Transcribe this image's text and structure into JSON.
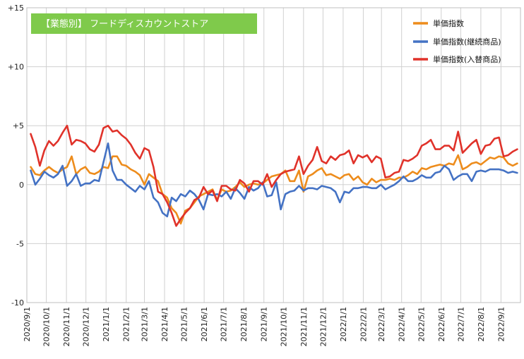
{
  "chart_data": {
    "type": "line",
    "title": "【業態別】 フードディスカウントストア",
    "xlabel": "",
    "ylabel": "",
    "ylim": [
      -10,
      15
    ],
    "yticks": [
      15,
      10,
      5,
      0,
      -5,
      -10
    ],
    "ytick_labels": [
      "+15",
      "+10",
      "+5",
      "0",
      "-5",
      "-10"
    ],
    "grid": true,
    "legend_position": "top-right",
    "x_start": "2020-09-01",
    "x_end": "2022-09-30",
    "xticks": [
      "2020-09-01",
      "2020-10-01",
      "2020-11-01",
      "2020-12-01",
      "2021-01-01",
      "2021-02-01",
      "2021-03-01",
      "2021-04-01",
      "2021-05-01",
      "2021-06-01",
      "2021-07-01",
      "2021-08-01",
      "2021-09-01",
      "2021-10-01",
      "2021-11-01",
      "2021-12-01",
      "2022-01-01",
      "2022-02-01",
      "2022-03-01",
      "2022-04-01",
      "2022-05-01",
      "2022-06-01",
      "2022-07-01",
      "2022-08-01",
      "2022-09-01"
    ],
    "xtick_labels": [
      "2020/9/1",
      "2020/10/1",
      "2020/11/1",
      "2020/12/1",
      "2021/1/1",
      "2021/2/1",
      "2021/3/1",
      "2021/4/1",
      "2021/5/1",
      "2021/6/1",
      "2021/7/1",
      "2021/8/1",
      "2021/9/1",
      "2021/10/1",
      "2021/11/1",
      "2021/12/1",
      "2022/1/1",
      "2022/2/1",
      "2022/3/1",
      "2022/4/1",
      "2022/5/1",
      "2022/6/1",
      "2022/7/1",
      "2022/8/1",
      "2022/9/1"
    ],
    "x": [
      "2020-09-07",
      "2020-09-14",
      "2020-09-21",
      "2020-09-28",
      "2020-10-05",
      "2020-10-12",
      "2020-10-19",
      "2020-10-26",
      "2020-11-02",
      "2020-11-09",
      "2020-11-16",
      "2020-11-23",
      "2020-11-30",
      "2020-12-07",
      "2020-12-14",
      "2020-12-21",
      "2020-12-28",
      "2021-01-04",
      "2021-01-11",
      "2021-01-18",
      "2021-01-25",
      "2021-02-01",
      "2021-02-08",
      "2021-02-15",
      "2021-02-22",
      "2021-03-01",
      "2021-03-08",
      "2021-03-15",
      "2021-03-22",
      "2021-03-29",
      "2021-04-05",
      "2021-04-12",
      "2021-04-19",
      "2021-04-26",
      "2021-05-03",
      "2021-05-10",
      "2021-05-17",
      "2021-05-24",
      "2021-05-31",
      "2021-06-07",
      "2021-06-14",
      "2021-06-21",
      "2021-06-28",
      "2021-07-05",
      "2021-07-12",
      "2021-07-19",
      "2021-07-26",
      "2021-08-02",
      "2021-08-09",
      "2021-08-16",
      "2021-08-23",
      "2021-08-30",
      "2021-09-06",
      "2021-09-13",
      "2021-09-20",
      "2021-09-27",
      "2021-10-04",
      "2021-10-11",
      "2021-10-18",
      "2021-10-25",
      "2021-11-01",
      "2021-11-08",
      "2021-11-15",
      "2021-11-22",
      "2021-11-29",
      "2021-12-06",
      "2021-12-13",
      "2021-12-20",
      "2021-12-27",
      "2022-01-03",
      "2022-01-10",
      "2022-01-17",
      "2022-01-24",
      "2022-01-31",
      "2022-02-07",
      "2022-02-14",
      "2022-02-21",
      "2022-02-28",
      "2022-03-07",
      "2022-03-14",
      "2022-03-21",
      "2022-03-28",
      "2022-04-04",
      "2022-04-11",
      "2022-04-18",
      "2022-04-25",
      "2022-05-02",
      "2022-05-09",
      "2022-05-16",
      "2022-05-23",
      "2022-05-30",
      "2022-06-06",
      "2022-06-13",
      "2022-06-20",
      "2022-06-27",
      "2022-07-04",
      "2022-07-11",
      "2022-07-18",
      "2022-07-25",
      "2022-08-01",
      "2022-08-08",
      "2022-08-15",
      "2022-08-22",
      "2022-08-29",
      "2022-09-05",
      "2022-09-12",
      "2022-09-19",
      "2022-09-26"
    ],
    "series": [
      {
        "name": "単価指数",
        "color": "#ed8c1c",
        "values": [
          1.5,
          0.9,
          0.8,
          1.2,
          1.5,
          1.2,
          1.0,
          1.3,
          1.5,
          2.4,
          0.9,
          1.3,
          1.5,
          1.0,
          0.9,
          1.1,
          1.5,
          1.4,
          2.4,
          2.4,
          1.7,
          1.6,
          1.3,
          1.1,
          0.8,
          0.0,
          0.9,
          0.6,
          0.3,
          -0.8,
          -1.1,
          -2.0,
          -2.4,
          -3.3,
          -2.2,
          -2.0,
          -1.5,
          -1.0,
          -0.8,
          -0.6,
          -0.4,
          -1.3,
          -0.4,
          -0.6,
          -0.5,
          -0.2,
          0.2,
          -0.2,
          0.0,
          0.1,
          0.0,
          0.1,
          0.4,
          0.7,
          0.8,
          0.9,
          1.2,
          0.3,
          0.3,
          1.2,
          -0.6,
          0.7,
          0.9,
          1.2,
          1.4,
          0.8,
          0.9,
          0.7,
          0.5,
          0.8,
          0.9,
          0.4,
          0.7,
          0.2,
          0.0,
          0.5,
          0.2,
          0.4,
          0.4,
          0.5,
          0.4,
          0.6,
          0.6,
          0.8,
          1.1,
          0.9,
          1.4,
          1.3,
          1.5,
          1.6,
          1.7,
          1.6,
          1.8,
          1.7,
          2.5,
          1.3,
          1.5,
          1.8,
          1.9,
          1.7,
          2.0,
          2.3,
          2.2,
          2.4,
          2.3,
          1.8,
          1.6,
          1.8
        ]
      },
      {
        "name": "単価指数(継続商品)",
        "color": "#4472c4",
        "values": [
          1.2,
          0.0,
          0.5,
          1.1,
          0.8,
          0.6,
          0.9,
          1.6,
          -0.1,
          0.3,
          0.9,
          -0.1,
          0.1,
          0.1,
          0.4,
          0.3,
          1.9,
          3.5,
          1.2,
          0.4,
          0.4,
          0.0,
          -0.3,
          -0.6,
          -0.1,
          -0.4,
          0.3,
          -1.1,
          -1.5,
          -2.4,
          -2.7,
          -1.1,
          -1.4,
          -0.8,
          -1.0,
          -0.5,
          -0.8,
          -1.3,
          -2.1,
          -0.8,
          -0.9,
          -0.8,
          -1.0,
          -0.6,
          -1.2,
          -0.3,
          -0.7,
          -1.2,
          -0.2,
          -0.5,
          -0.3,
          0.2,
          -1.0,
          -0.9,
          0.2,
          -2.1,
          -0.8,
          -0.6,
          -0.5,
          -0.1,
          -0.5,
          -0.3,
          -0.3,
          -0.4,
          -0.1,
          -0.2,
          -0.3,
          -0.6,
          -1.5,
          -0.6,
          -0.7,
          -0.3,
          -0.3,
          -0.2,
          -0.2,
          -0.3,
          -0.3,
          0.0,
          -0.4,
          -0.2,
          0.0,
          0.3,
          0.7,
          0.3,
          0.3,
          0.5,
          0.8,
          0.6,
          0.6,
          1.0,
          1.1,
          1.6,
          1.3,
          0.4,
          0.7,
          0.9,
          0.9,
          0.3,
          1.1,
          1.2,
          1.1,
          1.3,
          1.3,
          1.3,
          1.2,
          1.0,
          1.1,
          1.0
        ]
      },
      {
        "name": "単価指数(入替商品)",
        "color": "#e0322a",
        "values": [
          4.3,
          3.2,
          1.6,
          2.9,
          3.7,
          3.3,
          3.7,
          4.4,
          5.0,
          3.4,
          3.8,
          3.7,
          3.5,
          3.0,
          2.8,
          3.4,
          4.8,
          5.0,
          4.5,
          4.6,
          4.2,
          3.9,
          3.4,
          2.7,
          2.2,
          3.1,
          2.9,
          1.5,
          -0.6,
          -0.8,
          -1.5,
          -2.4,
          -3.5,
          -2.9,
          -2.4,
          -2.0,
          -1.3,
          -1.1,
          -0.2,
          -0.8,
          -0.5,
          -1.4,
          -0.1,
          -0.1,
          -0.4,
          -0.5,
          0.4,
          0.1,
          -0.6,
          0.3,
          0.3,
          0.0,
          0.9,
          -0.2,
          0.4,
          0.9,
          1.1,
          1.2,
          1.3,
          2.4,
          0.9,
          1.6,
          2.1,
          3.2,
          2.0,
          1.8,
          2.4,
          2.1,
          2.5,
          2.6,
          2.9,
          1.8,
          2.5,
          2.3,
          2.5,
          1.9,
          2.4,
          2.2,
          0.6,
          0.7,
          1.0,
          1.1,
          2.1,
          2.0,
          2.2,
          2.5,
          3.3,
          3.5,
          3.8,
          3.0,
          3.0,
          3.3,
          3.3,
          2.9,
          4.5,
          2.7,
          3.1,
          3.5,
          3.8,
          2.6,
          3.3,
          3.4,
          3.9,
          4.0,
          2.4,
          2.5,
          2.8,
          3.0
        ]
      }
    ]
  }
}
